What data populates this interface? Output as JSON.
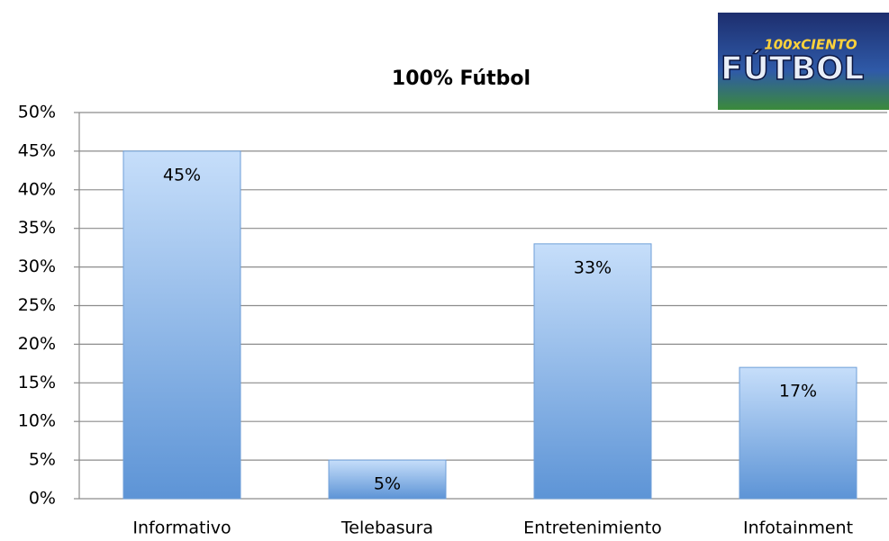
{
  "chart_data": {
    "type": "bar",
    "title": "100% Fútbol",
    "categories": [
      "Informativo",
      "Telebasura",
      "Entretenimiento",
      "Infotainment"
    ],
    "values": [
      45,
      5,
      33,
      17
    ],
    "value_labels": [
      "45%",
      "5%",
      "33%",
      "17%"
    ],
    "color": "#8fbcf0",
    "ylim": [
      0,
      50
    ],
    "yticks": [
      {
        "value": 0,
        "label": "0%"
      },
      {
        "value": 5,
        "label": "5%"
      },
      {
        "value": 10,
        "label": "10%"
      },
      {
        "value": 15,
        "label": "15%"
      },
      {
        "value": 20,
        "label": "20%"
      },
      {
        "value": 25,
        "label": "25%"
      },
      {
        "value": 30,
        "label": "30%"
      },
      {
        "value": 35,
        "label": "35%"
      },
      {
        "value": 40,
        "label": "40%"
      },
      {
        "value": 45,
        "label": "45%"
      },
      {
        "value": 50,
        "label": "50%"
      }
    ],
    "grid": true
  },
  "logo": {
    "top": "100xCIENTO",
    "main": "FÚTBOL"
  }
}
